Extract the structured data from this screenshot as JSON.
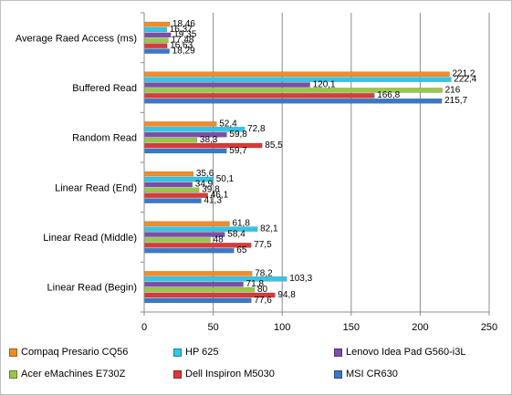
{
  "chart_data": {
    "type": "bar",
    "orientation": "horizontal",
    "categories": [
      "Average Raed Access (ms)",
      "Buffered Read",
      "Random Read",
      "Linear Read (End)",
      "Linear Read (Middle)",
      "Linear Read (Begin)"
    ],
    "series": [
      {
        "name": "Compaq Presario CQ56",
        "color": "#f28c28",
        "values": [
          18.46,
          221.2,
          52.4,
          35.6,
          61.8,
          78.2
        ],
        "labels": [
          "18,46",
          "221,2",
          "52,4",
          "35,6",
          "61,8",
          "78,2"
        ]
      },
      {
        "name": "HP 625",
        "color": "#33c6e6",
        "values": [
          16.37,
          222.4,
          72.8,
          50.1,
          82.1,
          103.3
        ],
        "labels": [
          "16,37",
          "222,4",
          "72,8",
          "50,1",
          "82,1",
          "103,3"
        ]
      },
      {
        "name": "Lenovo Idea Pad G560-i3L",
        "color": "#7a4fa8",
        "values": [
          19.35,
          120.1,
          59.8,
          34.9,
          58.4,
          71.8
        ],
        "labels": [
          "19,35",
          "120,1",
          "59,8",
          "34,9",
          "58,4",
          "71,8"
        ]
      },
      {
        "name": "Acer eMachines E730Z",
        "color": "#98c84a",
        "values": [
          17.48,
          216,
          38.3,
          39.8,
          48,
          80
        ],
        "labels": [
          "17,48",
          "216",
          "38,3",
          "39,8",
          "48",
          "80"
        ]
      },
      {
        "name": "Dell Inspiron M5030",
        "color": "#d93a3a",
        "values": [
          16.63,
          166.8,
          85.5,
          46.1,
          77.5,
          94.8
        ],
        "labels": [
          "16,63",
          "166,8",
          "85,5",
          "46,1",
          "77,5",
          "94,8"
        ]
      },
      {
        "name": "MSI CR630",
        "color": "#3a78c8",
        "values": [
          18.29,
          215.7,
          59.7,
          41.3,
          65,
          77.6
        ],
        "labels": [
          "18,29",
          "215,7",
          "59,7",
          "41,3",
          "65",
          "77,6"
        ]
      }
    ],
    "xlim": [
      0,
      250
    ],
    "xticks": [
      "0",
      "50",
      "100",
      "150",
      "200",
      "250"
    ],
    "grid": "vertical",
    "legend_position": "bottom"
  }
}
